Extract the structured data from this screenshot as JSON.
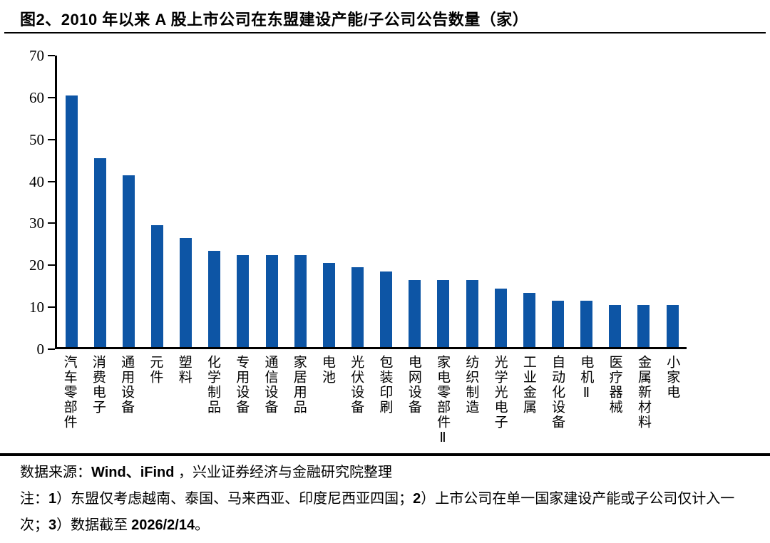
{
  "title": "图2、2010 年以来 A 股上市公司在东盟建设产能/子公司公告数量（家）",
  "chart_data": {
    "type": "bar",
    "title": "图2、2010 年以来 A 股上市公司在东盟建设产能/子公司公告数量（家）",
    "categories": [
      "汽车零部件",
      "消费电子",
      "通用设备",
      "元件",
      "塑料",
      "化学制品",
      "专用设备",
      "通信设备",
      "家居用品",
      "电池",
      "光伏设备",
      "包装印刷",
      "电网设备",
      "家电零部件Ⅱ",
      "纺织制造",
      "光学光电子",
      "工业金属",
      "自动化设备",
      "电机Ⅱ",
      "医疗器械",
      "金属新材料",
      "小家电"
    ],
    "values": [
      60,
      45,
      41,
      29,
      26,
      23,
      22,
      22,
      22,
      20,
      19,
      18,
      16,
      16,
      16,
      14,
      13,
      11,
      11,
      10,
      10,
      10
    ],
    "xlabel": "",
    "ylabel": "",
    "ylim": [
      0,
      70
    ],
    "yticks": [
      0,
      10,
      20,
      30,
      40,
      50,
      60,
      70
    ],
    "grid": false,
    "legend_position": "none",
    "bar_color": "#0D55A5",
    "axis_color": "#000000"
  },
  "footer": {
    "source_segments": [
      {
        "text": "数据来源：",
        "bold": false
      },
      {
        "text": "Wind、iFind ",
        "bold": true
      },
      {
        "text": "，兴业证券经济与金融研究院整理",
        "bold": false
      }
    ],
    "note_segments": [
      {
        "text": "注：",
        "bold": false
      },
      {
        "text": "1",
        "bold": true
      },
      {
        "text": "）东盟仅考虑越南、泰国、马来西亚、印度尼西亚四国；",
        "bold": false
      },
      {
        "text": "2",
        "bold": true
      },
      {
        "text": "）上市公司在单一国家建设产能或子公司仅计入一次；",
        "bold": false
      },
      {
        "text": "3",
        "bold": true
      },
      {
        "text": "）数据截至 ",
        "bold": false
      },
      {
        "text": "2026/2/14",
        "bold": true
      },
      {
        "text": "。",
        "bold": false
      }
    ]
  }
}
